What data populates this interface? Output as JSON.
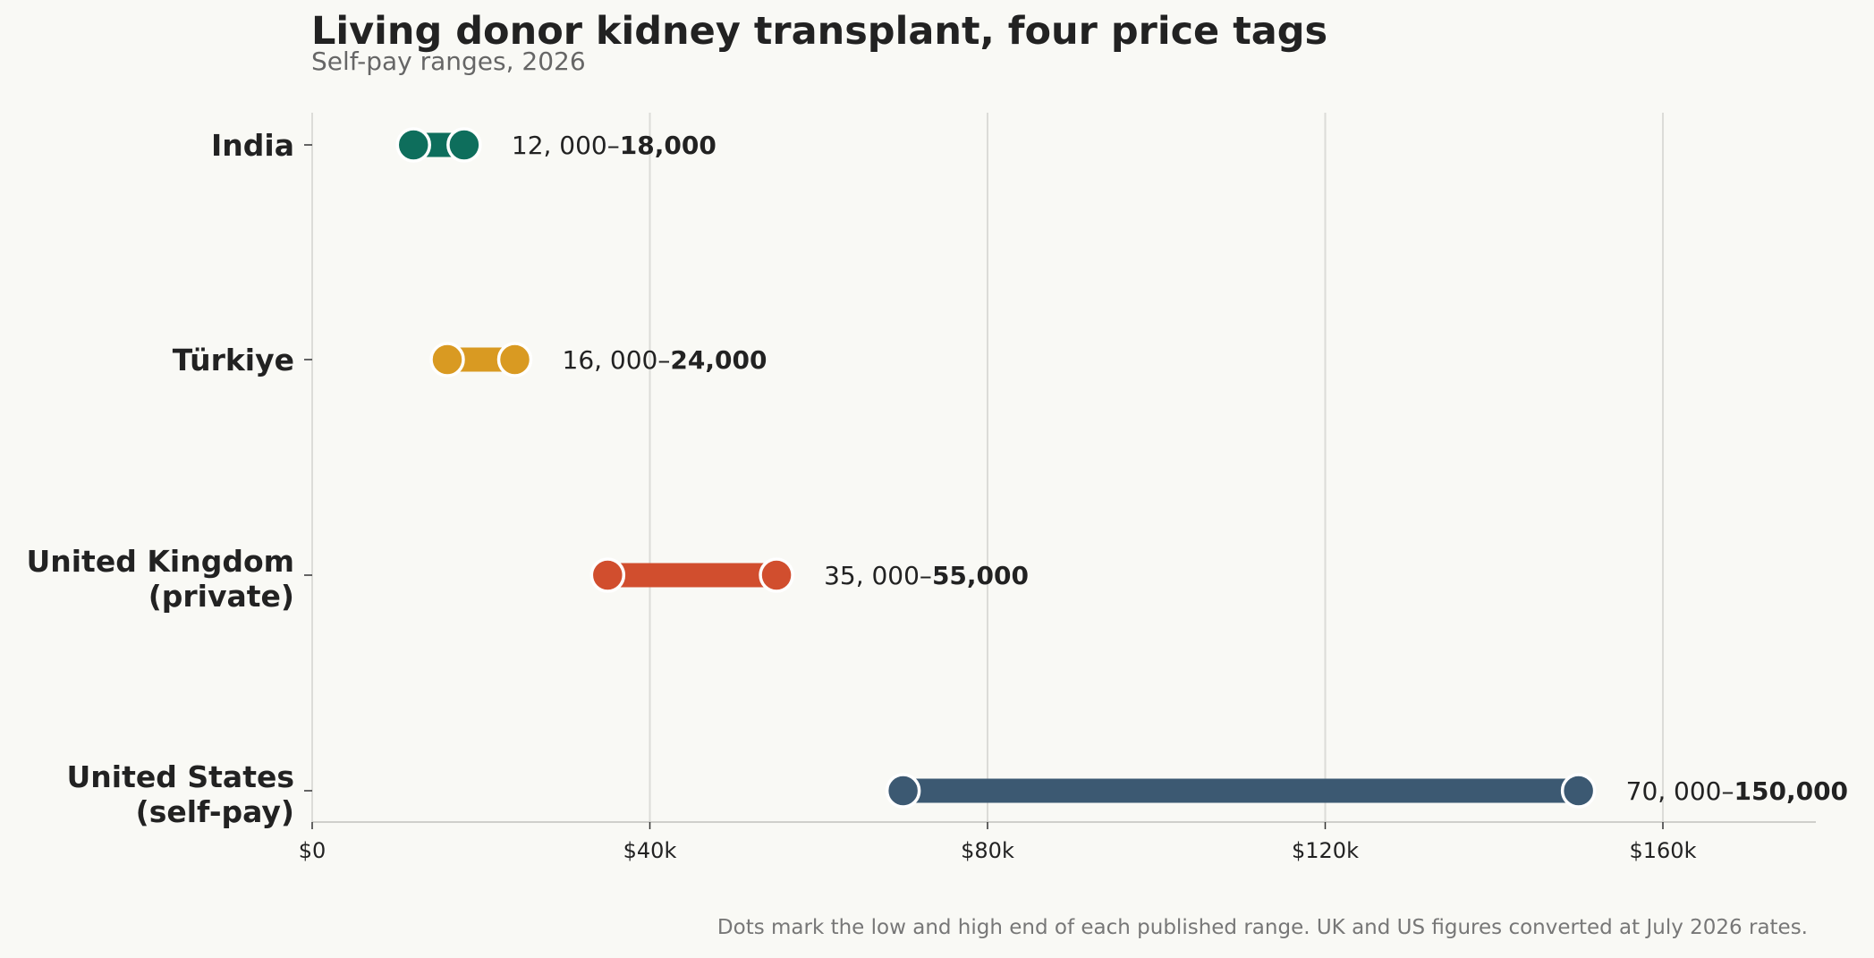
{
  "chart_data": {
    "type": "dumbbell",
    "title": "Living donor kidney transplant, four price tags",
    "subtitle": "Self-pay ranges, 2026",
    "footnote": "Dots mark the low and high end of each published range. UK and US figures converted at July 2026 rates.",
    "xlim": [
      0,
      178000
    ],
    "x_ticks": [
      0,
      40000,
      80000,
      120000,
      160000
    ],
    "x_tick_labels": [
      "$0",
      "$40k",
      "$80k",
      "$120k",
      "$160k"
    ],
    "grid": "vertical",
    "rows": [
      {
        "category": [
          "India"
        ],
        "low": 12000,
        "high": 18000,
        "low_label": "12, 000–",
        "high_label": "18,000",
        "color": "#0e6e5c"
      },
      {
        "category": [
          "Türkiye"
        ],
        "low": 16000,
        "high": 24000,
        "low_label": "16, 000–",
        "high_label": "24,000",
        "color": "#d99a22"
      },
      {
        "category": [
          "United Kingdom",
          "(private)"
        ],
        "low": 35000,
        "high": 55000,
        "low_label": "35, 000–",
        "high_label": "55,000",
        "color": "#d14e2e"
      },
      {
        "category": [
          "United States",
          "(self-pay)"
        ],
        "low": 70000,
        "high": 150000,
        "low_label": "70, 000–",
        "high_label": "150,000",
        "color": "#3c5972"
      }
    ]
  }
}
